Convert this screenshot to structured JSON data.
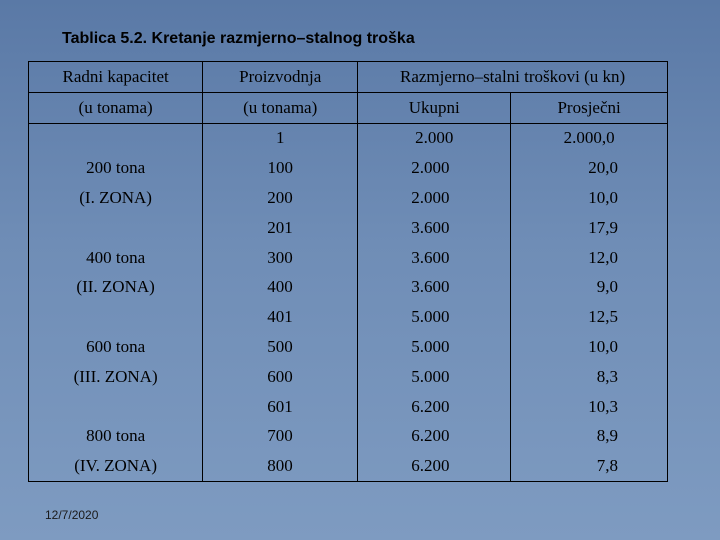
{
  "title": "Tablica 5.2. Kretanje razmjerno–stalnog troška",
  "header": {
    "row1": [
      "Radni kapacitet",
      "Proizvodnja",
      "Razmjerno–stalni troškovi (u kn)"
    ],
    "row2": [
      "(u tonama)",
      "(u tonama)",
      "Ukupni",
      "Prosječni"
    ]
  },
  "rows": [
    [
      "",
      "1",
      "2.000",
      "2.000,0"
    ],
    [
      "200 tona",
      "100",
      "2.000",
      "20,0"
    ],
    [
      "(I. ZONA)",
      "200",
      "2.000",
      "10,0"
    ],
    [
      "",
      "201",
      "3.600",
      "17,9"
    ],
    [
      "400 tona",
      "300",
      "3.600",
      "12,0"
    ],
    [
      "(II. ZONA)",
      "400",
      "3.600",
      "9,0"
    ],
    [
      "",
      "401",
      "5.000",
      "12,5"
    ],
    [
      "600 tona",
      "500",
      "5.000",
      "10,0"
    ],
    [
      "(III. ZONA)",
      "600",
      "5.000",
      "8,3"
    ],
    [
      "",
      "601",
      "6.200",
      "10,3"
    ],
    [
      "800 tona",
      "700",
      "6.200",
      "8,9"
    ],
    [
      "(IV. ZONA)",
      "800",
      "6.200",
      "7,8"
    ]
  ],
  "footer_date": "12/7/2020"
}
